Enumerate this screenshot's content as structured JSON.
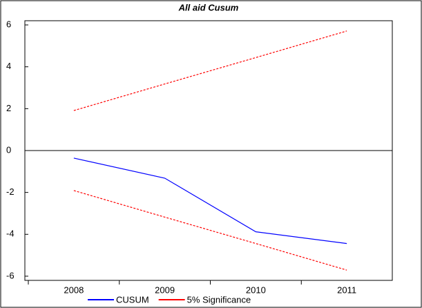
{
  "chart_data": {
    "type": "line",
    "title": "All aid Cusum",
    "categories": [
      "2008",
      "2009",
      "2010",
      "2011"
    ],
    "series": [
      {
        "name": "CUSUM",
        "color": "#0000ff",
        "dashed": false,
        "values": [
          -0.36,
          -1.32,
          -3.88,
          -4.44
        ]
      },
      {
        "name": "5% Significance",
        "color": "#ff0000",
        "dashed": true,
        "values": [
          1.91,
          3.18,
          4.44,
          5.71
        ],
        "lower_values": [
          -1.91,
          -3.18,
          -4.44,
          -5.71
        ]
      }
    ],
    "ylim": [
      -6.2,
      6.2
    ],
    "yticks": [
      -6,
      -4,
      -2,
      0,
      2,
      4,
      6
    ],
    "zero_line": true,
    "legend": "bottom"
  }
}
